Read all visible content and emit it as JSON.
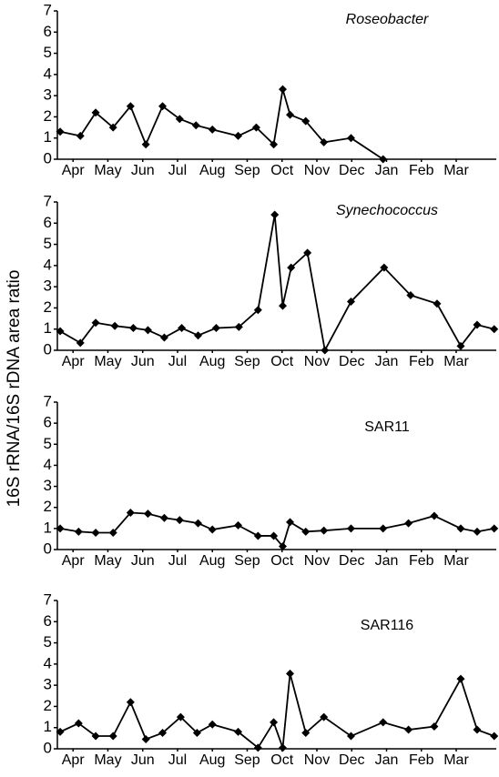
{
  "ylabel": "16S rRNA/16S rDNA area ratio",
  "chart_data": [
    {
      "type": "line",
      "title": "Roseobacter",
      "title_italic": true,
      "color": "#000000",
      "x": [
        -0.37,
        0.21,
        0.65,
        1.15,
        1.65,
        2.09,
        2.57,
        3.06,
        3.53,
        4.0,
        4.74,
        5.26,
        5.76,
        6.02,
        6.23,
        6.68,
        7.2,
        7.98,
        8.9
      ],
      "values": [
        1.3,
        1.1,
        2.2,
        1.5,
        2.5,
        0.7,
        2.5,
        1.9,
        1.6,
        1.4,
        1.1,
        1.5,
        0.7,
        3.3,
        2.1,
        1.8,
        0.8,
        1.0,
        0.0
      ],
      "xlim": [
        -0.45,
        12.15
      ],
      "xticks": [
        {
          "value": 0,
          "label": "Apr"
        },
        {
          "value": 1,
          "label": "May"
        },
        {
          "value": 2,
          "label": "Jun"
        },
        {
          "value": 3,
          "label": "Jul"
        },
        {
          "value": 4,
          "label": "Aug"
        },
        {
          "value": 5,
          "label": "Sep"
        },
        {
          "value": 6,
          "label": "Oct"
        },
        {
          "value": 7,
          "label": "Nov"
        },
        {
          "value": 8,
          "label": "Dec"
        },
        {
          "value": 9,
          "label": "Jan"
        },
        {
          "value": 10,
          "label": "Feb"
        },
        {
          "value": 11,
          "label": "Mar"
        }
      ],
      "ylim": [
        0,
        7
      ],
      "yticks": [
        0,
        1,
        2,
        3,
        4,
        5,
        6,
        7
      ]
    },
    {
      "type": "line",
      "title": "Synechococcus",
      "title_italic": true,
      "color": "#000000",
      "x": [
        -0.37,
        0.21,
        0.65,
        1.2,
        1.73,
        2.15,
        2.62,
        3.12,
        3.59,
        4.11,
        4.76,
        5.31,
        5.79,
        6.02,
        6.26,
        6.73,
        7.23,
        7.98,
        8.93,
        9.69,
        10.45,
        11.13,
        11.6,
        12.09
      ],
      "values": [
        0.9,
        0.35,
        1.3,
        1.15,
        1.05,
        0.95,
        0.6,
        1.05,
        0.7,
        1.05,
        1.1,
        1.9,
        6.4,
        2.1,
        3.9,
        4.6,
        0.0,
        2.3,
        3.9,
        2.6,
        2.2,
        0.2,
        1.2,
        1.0
      ],
      "xlim": [
        -0.45,
        12.15
      ],
      "xticks": [
        {
          "value": 0,
          "label": "Apr"
        },
        {
          "value": 1,
          "label": "May"
        },
        {
          "value": 2,
          "label": "Jun"
        },
        {
          "value": 3,
          "label": "Jul"
        },
        {
          "value": 4,
          "label": "Aug"
        },
        {
          "value": 5,
          "label": "Sep"
        },
        {
          "value": 6,
          "label": "Oct"
        },
        {
          "value": 7,
          "label": "Nov"
        },
        {
          "value": 8,
          "label": "Dec"
        },
        {
          "value": 9,
          "label": "Jan"
        },
        {
          "value": 10,
          "label": "Feb"
        },
        {
          "value": 11,
          "label": "Mar"
        }
      ],
      "ylim": [
        0,
        7
      ],
      "yticks": [
        0,
        1,
        2,
        3,
        4,
        5,
        6,
        7
      ]
    },
    {
      "type": "line",
      "title": "SAR11",
      "title_italic": false,
      "color": "#000000",
      "x": [
        -0.37,
        0.16,
        0.65,
        1.15,
        1.65,
        2.15,
        2.62,
        3.06,
        3.59,
        4.0,
        4.74,
        5.31,
        5.76,
        6.02,
        6.23,
        6.68,
        7.2,
        7.98,
        8.9,
        9.63,
        10.37,
        11.13,
        11.6,
        12.09
      ],
      "values": [
        1.0,
        0.85,
        0.8,
        0.8,
        1.75,
        1.7,
        1.5,
        1.4,
        1.25,
        0.95,
        1.15,
        0.65,
        0.65,
        0.15,
        1.3,
        0.85,
        0.9,
        1.0,
        1.0,
        1.25,
        1.6,
        1.0,
        0.85,
        1.0
      ],
      "xlim": [
        -0.45,
        12.15
      ],
      "xticks": [
        {
          "value": 0,
          "label": "Apr"
        },
        {
          "value": 1,
          "label": "May"
        },
        {
          "value": 2,
          "label": "Jun"
        },
        {
          "value": 3,
          "label": "Jul"
        },
        {
          "value": 4,
          "label": "Aug"
        },
        {
          "value": 5,
          "label": "Sep"
        },
        {
          "value": 6,
          "label": "Oct"
        },
        {
          "value": 7,
          "label": "Nov"
        },
        {
          "value": 8,
          "label": "Dec"
        },
        {
          "value": 9,
          "label": "Jan"
        },
        {
          "value": 10,
          "label": "Feb"
        },
        {
          "value": 11,
          "label": "Mar"
        }
      ],
      "ylim": [
        0,
        7
      ],
      "yticks": [
        0,
        1,
        2,
        3,
        4,
        5,
        6,
        7
      ]
    },
    {
      "type": "line",
      "title": "SAR116",
      "title_italic": false,
      "color": "#000000",
      "x": [
        -0.37,
        0.16,
        0.65,
        1.15,
        1.65,
        2.09,
        2.57,
        3.09,
        3.56,
        4.0,
        4.74,
        5.31,
        5.76,
        6.02,
        6.23,
        6.68,
        7.2,
        7.98,
        8.9,
        9.63,
        10.37,
        11.13,
        11.6,
        12.09
      ],
      "values": [
        0.8,
        1.2,
        0.6,
        0.6,
        2.2,
        0.45,
        0.75,
        1.5,
        0.75,
        1.15,
        0.8,
        0.05,
        1.25,
        0.05,
        3.55,
        0.75,
        1.5,
        0.6,
        1.25,
        0.9,
        1.05,
        3.3,
        0.9,
        0.6
      ],
      "xlim": [
        -0.45,
        12.15
      ],
      "xticks": [
        {
          "value": 0,
          "label": "Apr"
        },
        {
          "value": 1,
          "label": "May"
        },
        {
          "value": 2,
          "label": "Jun"
        },
        {
          "value": 3,
          "label": "Jul"
        },
        {
          "value": 4,
          "label": "Aug"
        },
        {
          "value": 5,
          "label": "Sep"
        },
        {
          "value": 6,
          "label": "Oct"
        },
        {
          "value": 7,
          "label": "Nov"
        },
        {
          "value": 8,
          "label": "Dec"
        },
        {
          "value": 9,
          "label": "Jan"
        },
        {
          "value": 10,
          "label": "Feb"
        },
        {
          "value": 11,
          "label": "Mar"
        }
      ],
      "ylim": [
        0,
        7
      ],
      "yticks": [
        0,
        1,
        2,
        3,
        4,
        5,
        6,
        7
      ]
    }
  ]
}
